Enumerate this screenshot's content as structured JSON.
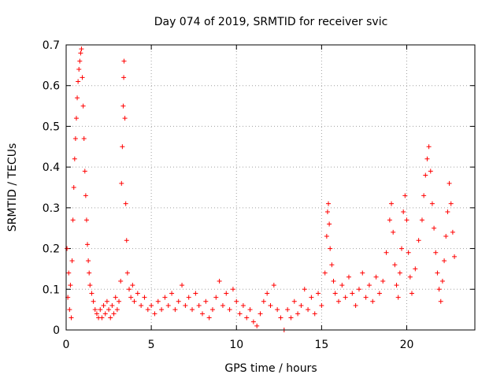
{
  "chart_data": {
    "type": "scatter",
    "title": "Day 074 of 2019, SRMTID for receiver svic",
    "xlabel": "GPS time / hours",
    "ylabel": "SRMTID / TECUs",
    "xlim": [
      0,
      24
    ],
    "ylim": [
      0,
      0.7
    ],
    "xticks": [
      0,
      5,
      10,
      15,
      20
    ],
    "yticks": [
      0,
      0.1,
      0.2,
      0.3,
      0.4,
      0.5,
      0.6,
      0.7
    ],
    "xtick_labels": [
      "0",
      "5",
      "10",
      "15",
      "20"
    ],
    "ytick_labels": [
      "0",
      "0.1",
      "0.2",
      "0.3",
      "0.4",
      "0.5",
      "0.6",
      "0.7"
    ],
    "grid": true,
    "marker": "+",
    "color": "#ff0000",
    "series": [
      {
        "name": "SRMTID",
        "points": [
          [
            0.05,
            0.2
          ],
          [
            0.1,
            0.08
          ],
          [
            0.15,
            0.14
          ],
          [
            0.2,
            0.05
          ],
          [
            0.25,
            0.11
          ],
          [
            0.3,
            0.03
          ],
          [
            0.35,
            0.17
          ],
          [
            0.4,
            0.27
          ],
          [
            0.45,
            0.35
          ],
          [
            0.5,
            0.42
          ],
          [
            0.55,
            0.47
          ],
          [
            0.6,
            0.52
          ],
          [
            0.65,
            0.57
          ],
          [
            0.7,
            0.61
          ],
          [
            0.75,
            0.64
          ],
          [
            0.8,
            0.66
          ],
          [
            0.85,
            0.68
          ],
          [
            0.9,
            0.69
          ],
          [
            0.95,
            0.62
          ],
          [
            1.0,
            0.55
          ],
          [
            1.05,
            0.47
          ],
          [
            1.1,
            0.39
          ],
          [
            1.15,
            0.33
          ],
          [
            1.2,
            0.27
          ],
          [
            1.25,
            0.21
          ],
          [
            1.3,
            0.17
          ],
          [
            1.35,
            0.14
          ],
          [
            1.4,
            0.11
          ],
          [
            1.5,
            0.09
          ],
          [
            1.6,
            0.07
          ],
          [
            1.7,
            0.05
          ],
          [
            1.8,
            0.04
          ],
          [
            1.9,
            0.03
          ],
          [
            2.0,
            0.05
          ],
          [
            2.1,
            0.03
          ],
          [
            2.2,
            0.06
          ],
          [
            2.3,
            0.04
          ],
          [
            2.4,
            0.07
          ],
          [
            2.5,
            0.05
          ],
          [
            2.6,
            0.03
          ],
          [
            2.7,
            0.06
          ],
          [
            2.8,
            0.04
          ],
          [
            2.9,
            0.08
          ],
          [
            3.0,
            0.05
          ],
          [
            3.1,
            0.07
          ],
          [
            3.2,
            0.12
          ],
          [
            3.25,
            0.36
          ],
          [
            3.3,
            0.45
          ],
          [
            3.35,
            0.55
          ],
          [
            3.38,
            0.62
          ],
          [
            3.4,
            0.66
          ],
          [
            3.45,
            0.52
          ],
          [
            3.5,
            0.31
          ],
          [
            3.55,
            0.22
          ],
          [
            3.6,
            0.14
          ],
          [
            3.7,
            0.1
          ],
          [
            3.8,
            0.08
          ],
          [
            3.9,
            0.11
          ],
          [
            4.0,
            0.07
          ],
          [
            4.2,
            0.09
          ],
          [
            4.4,
            0.06
          ],
          [
            4.6,
            0.08
          ],
          [
            4.8,
            0.05
          ],
          [
            5.0,
            0.06
          ],
          [
            5.2,
            0.04
          ],
          [
            5.4,
            0.07
          ],
          [
            5.6,
            0.05
          ],
          [
            5.8,
            0.08
          ],
          [
            6.0,
            0.06
          ],
          [
            6.2,
            0.09
          ],
          [
            6.4,
            0.05
          ],
          [
            6.6,
            0.07
          ],
          [
            6.8,
            0.11
          ],
          [
            7.0,
            0.06
          ],
          [
            7.2,
            0.08
          ],
          [
            7.4,
            0.05
          ],
          [
            7.6,
            0.09
          ],
          [
            7.8,
            0.06
          ],
          [
            8.0,
            0.04
          ],
          [
            8.2,
            0.07
          ],
          [
            8.4,
            0.03
          ],
          [
            8.6,
            0.05
          ],
          [
            8.8,
            0.08
          ],
          [
            9.0,
            0.12
          ],
          [
            9.2,
            0.06
          ],
          [
            9.4,
            0.09
          ],
          [
            9.6,
            0.05
          ],
          [
            9.8,
            0.1
          ],
          [
            10.0,
            0.07
          ],
          [
            10.2,
            0.04
          ],
          [
            10.4,
            0.06
          ],
          [
            10.6,
            0.03
          ],
          [
            10.8,
            0.05
          ],
          [
            11.0,
            0.02
          ],
          [
            11.2,
            0.01
          ],
          [
            11.4,
            0.04
          ],
          [
            11.6,
            0.07
          ],
          [
            11.8,
            0.09
          ],
          [
            12.0,
            0.06
          ],
          [
            12.2,
            0.11
          ],
          [
            12.4,
            0.05
          ],
          [
            12.6,
            0.03
          ],
          [
            12.8,
            0.0
          ],
          [
            13.0,
            0.05
          ],
          [
            13.2,
            0.03
          ],
          [
            13.4,
            0.07
          ],
          [
            13.6,
            0.04
          ],
          [
            13.8,
            0.06
          ],
          [
            14.0,
            0.1
          ],
          [
            14.2,
            0.05
          ],
          [
            14.4,
            0.08
          ],
          [
            14.6,
            0.04
          ],
          [
            14.8,
            0.09
          ],
          [
            15.0,
            0.06
          ],
          [
            15.2,
            0.14
          ],
          [
            15.3,
            0.23
          ],
          [
            15.35,
            0.29
          ],
          [
            15.4,
            0.31
          ],
          [
            15.45,
            0.26
          ],
          [
            15.5,
            0.2
          ],
          [
            15.6,
            0.16
          ],
          [
            15.7,
            0.12
          ],
          [
            15.8,
            0.09
          ],
          [
            16.0,
            0.07
          ],
          [
            16.2,
            0.11
          ],
          [
            16.4,
            0.08
          ],
          [
            16.6,
            0.13
          ],
          [
            16.8,
            0.09
          ],
          [
            17.0,
            0.06
          ],
          [
            17.2,
            0.1
          ],
          [
            17.4,
            0.14
          ],
          [
            17.6,
            0.08
          ],
          [
            17.8,
            0.11
          ],
          [
            18.0,
            0.07
          ],
          [
            18.2,
            0.13
          ],
          [
            18.4,
            0.09
          ],
          [
            18.6,
            0.12
          ],
          [
            18.8,
            0.19
          ],
          [
            19.0,
            0.27
          ],
          [
            19.1,
            0.31
          ],
          [
            19.2,
            0.24
          ],
          [
            19.3,
            0.16
          ],
          [
            19.4,
            0.11
          ],
          [
            19.5,
            0.08
          ],
          [
            19.6,
            0.14
          ],
          [
            19.7,
            0.2
          ],
          [
            19.8,
            0.29
          ],
          [
            19.9,
            0.33
          ],
          [
            20.0,
            0.27
          ],
          [
            20.1,
            0.19
          ],
          [
            20.2,
            0.13
          ],
          [
            20.3,
            0.09
          ],
          [
            20.5,
            0.15
          ],
          [
            20.7,
            0.22
          ],
          [
            20.9,
            0.27
          ],
          [
            21.0,
            0.33
          ],
          [
            21.1,
            0.38
          ],
          [
            21.2,
            0.42
          ],
          [
            21.3,
            0.45
          ],
          [
            21.4,
            0.39
          ],
          [
            21.5,
            0.31
          ],
          [
            21.6,
            0.25
          ],
          [
            21.7,
            0.19
          ],
          [
            21.8,
            0.14
          ],
          [
            21.9,
            0.1
          ],
          [
            22.0,
            0.07
          ],
          [
            22.1,
            0.12
          ],
          [
            22.2,
            0.17
          ],
          [
            22.3,
            0.23
          ],
          [
            22.4,
            0.29
          ],
          [
            22.5,
            0.36
          ],
          [
            22.6,
            0.31
          ],
          [
            22.7,
            0.24
          ],
          [
            22.8,
            0.18
          ]
        ]
      }
    ]
  }
}
